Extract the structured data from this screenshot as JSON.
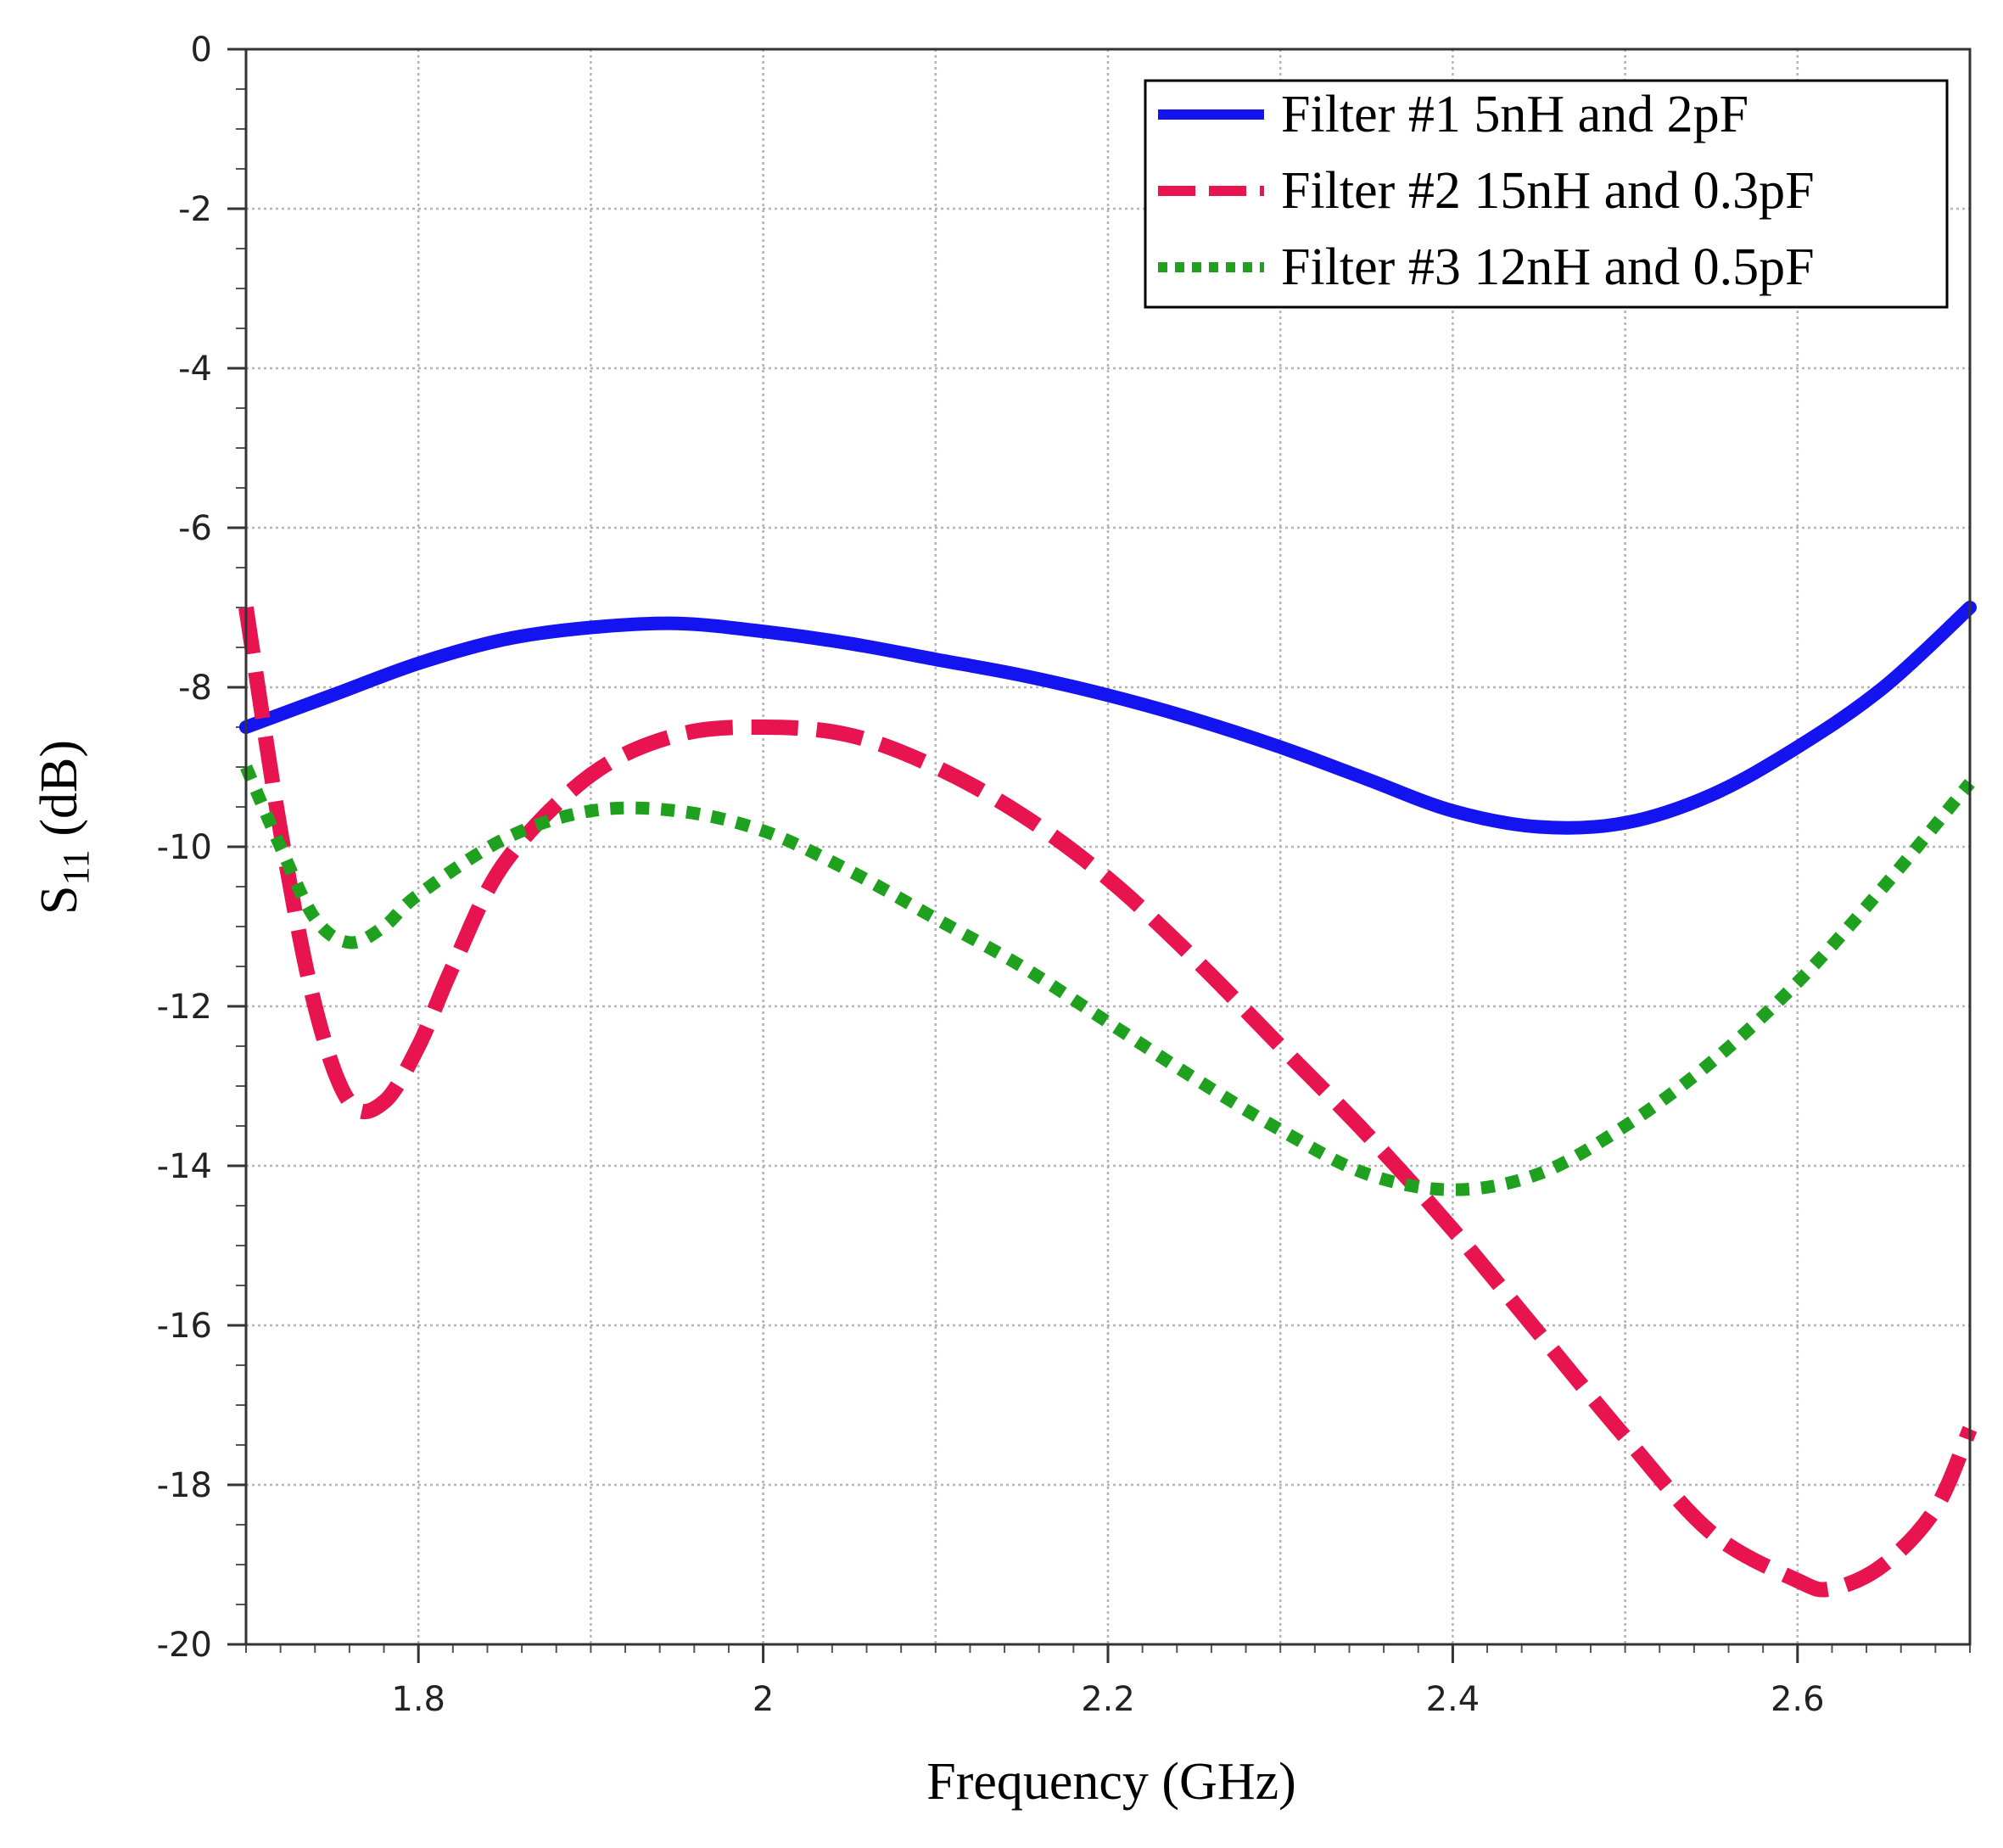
{
  "chart_data": {
    "type": "line",
    "title": "",
    "xlabel": "Frequency (GHz)",
    "ylabel": {
      "base": "S",
      "subscript": "11",
      "suffix": " (dB)"
    },
    "xlim": [
      1.7,
      2.7
    ],
    "ylim": [
      -20,
      0
    ],
    "xticks": [
      1.8,
      2.0,
      2.2,
      2.4,
      2.6
    ],
    "xtick_labels": [
      "1.8",
      "2",
      "2.2",
      "2.4",
      "2.6"
    ],
    "yticks": [
      0,
      -2,
      -4,
      -6,
      -8,
      -10,
      -12,
      -14,
      -16,
      -18,
      -20
    ],
    "ytick_labels": [
      "0",
      "-2",
      "-4",
      "-6",
      "-8",
      "-10",
      "-12",
      "-14",
      "-16",
      "-18",
      "-20"
    ],
    "grid": true,
    "legend_position": "top-right",
    "series": [
      {
        "name": "Filter #1 5nH and 2pF",
        "color": "#1414f0",
        "style": "solid",
        "x": [
          1.7,
          1.75,
          1.8,
          1.85,
          1.9,
          1.95,
          2.0,
          2.05,
          2.1,
          2.15,
          2.2,
          2.25,
          2.3,
          2.35,
          2.4,
          2.45,
          2.5,
          2.55,
          2.6,
          2.65,
          2.7
        ],
        "y": [
          -8.5,
          -8.1,
          -7.7,
          -7.4,
          -7.25,
          -7.2,
          -7.3,
          -7.45,
          -7.65,
          -7.85,
          -8.1,
          -8.4,
          -8.75,
          -9.15,
          -9.55,
          -9.75,
          -9.7,
          -9.35,
          -8.75,
          -8.0,
          -7.0
        ]
      },
      {
        "name": "Filter #2 15nH and 0.3pF",
        "color": "#e8144f",
        "style": "dashed",
        "x": [
          1.7,
          1.72,
          1.74,
          1.76,
          1.78,
          1.8,
          1.82,
          1.85,
          1.9,
          1.95,
          2.0,
          2.05,
          2.1,
          2.15,
          2.2,
          2.25,
          2.3,
          2.35,
          2.4,
          2.45,
          2.5,
          2.55,
          2.6,
          2.62,
          2.65,
          2.68,
          2.7
        ],
        "y": [
          -7.0,
          -9.8,
          -12.0,
          -13.2,
          -13.2,
          -12.5,
          -11.5,
          -10.2,
          -9.1,
          -8.6,
          -8.5,
          -8.6,
          -9.0,
          -9.6,
          -10.4,
          -11.4,
          -12.5,
          -13.6,
          -14.8,
          -16.1,
          -17.4,
          -18.6,
          -19.2,
          -19.3,
          -19.0,
          -18.3,
          -17.3
        ]
      },
      {
        "name": "Filter #3 12nH and 0.5pF",
        "color": "#1fa01f",
        "style": "dotted",
        "x": [
          1.7,
          1.72,
          1.74,
          1.76,
          1.78,
          1.8,
          1.85,
          1.9,
          1.95,
          2.0,
          2.05,
          2.1,
          2.15,
          2.2,
          2.25,
          2.3,
          2.35,
          2.4,
          2.45,
          2.5,
          2.55,
          2.6,
          2.65,
          2.7
        ],
        "y": [
          -9.0,
          -10.0,
          -10.9,
          -11.2,
          -11.0,
          -10.6,
          -9.9,
          -9.55,
          -9.55,
          -9.8,
          -10.3,
          -10.9,
          -11.5,
          -12.2,
          -12.9,
          -13.55,
          -14.1,
          -14.3,
          -14.1,
          -13.5,
          -12.7,
          -11.7,
          -10.5,
          -9.2
        ]
      }
    ]
  }
}
